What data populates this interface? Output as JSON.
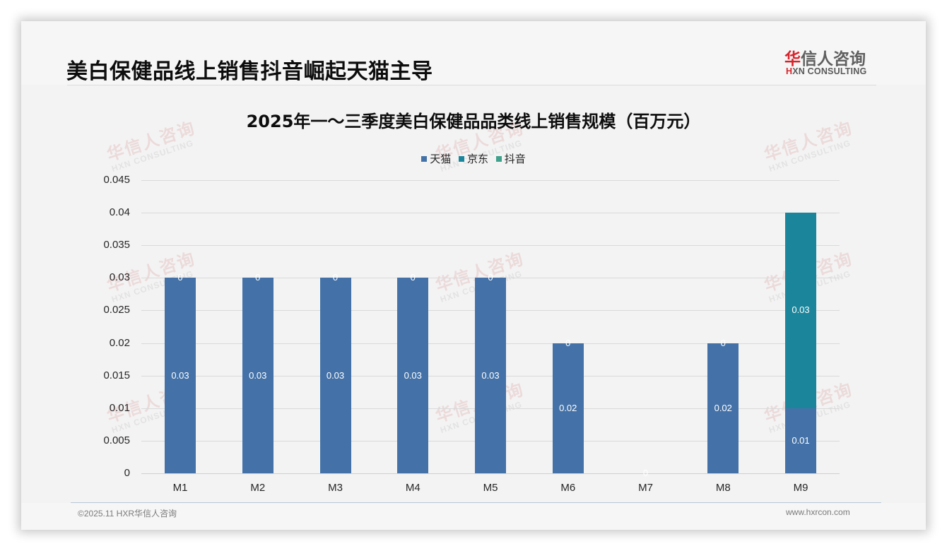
{
  "header": {
    "title": "美白保健品线上销售抖音崛起天猫主导",
    "logo_cn_accent": "华",
    "logo_cn_rest": "信人咨询",
    "logo_en_accent": "H",
    "logo_en_rest": "XN CONSULTING"
  },
  "watermark": {
    "cn": "华信人咨询",
    "en": "HXN CONSULTING"
  },
  "footer": {
    "copyright": "©2025.11 HXR华信人咨询",
    "website": "www.hxrcon.com"
  },
  "colors": {
    "tmall": "#4472a8",
    "jd": "#1b869b",
    "douyin": "#3fa08c"
  },
  "chart_data": {
    "type": "bar",
    "stacked": true,
    "title": "2025年一～三季度美白保健品品类线上销售规模（百万元）",
    "xlabel": "",
    "ylabel": "",
    "categories": [
      "M1",
      "M2",
      "M3",
      "M4",
      "M5",
      "M6",
      "M7",
      "M8",
      "M9"
    ],
    "series": [
      {
        "name": "天猫",
        "values": [
          0.03,
          0.03,
          0.03,
          0.03,
          0.03,
          0.02,
          0,
          0.02,
          0.01
        ],
        "labels": [
          "0.03",
          "0.03",
          "0.03",
          "0.03",
          "0.03",
          "0.02",
          "0",
          "0.02",
          "0.01"
        ]
      },
      {
        "name": "京东",
        "values": [
          0,
          0,
          0,
          0,
          0,
          0,
          0,
          0,
          0.03
        ],
        "labels": [
          "0",
          "0",
          "0",
          "0",
          "0",
          "0",
          "",
          "0",
          "0.03"
        ]
      },
      {
        "name": "抖音",
        "values": [
          0,
          0,
          0,
          0,
          0,
          0,
          0,
          0,
          0
        ],
        "labels": [
          "",
          "",
          "",
          "",
          "",
          "",
          "",
          "",
          ""
        ]
      }
    ],
    "legend": [
      "天猫",
      "京东",
      "抖音"
    ],
    "legend_position": "top",
    "ylim": [
      0,
      0.045
    ],
    "yticks": [
      "0",
      "0.005",
      "0.01",
      "0.015",
      "0.02",
      "0.025",
      "0.03",
      "0.035",
      "0.04",
      "0.045"
    ],
    "grid": true
  }
}
